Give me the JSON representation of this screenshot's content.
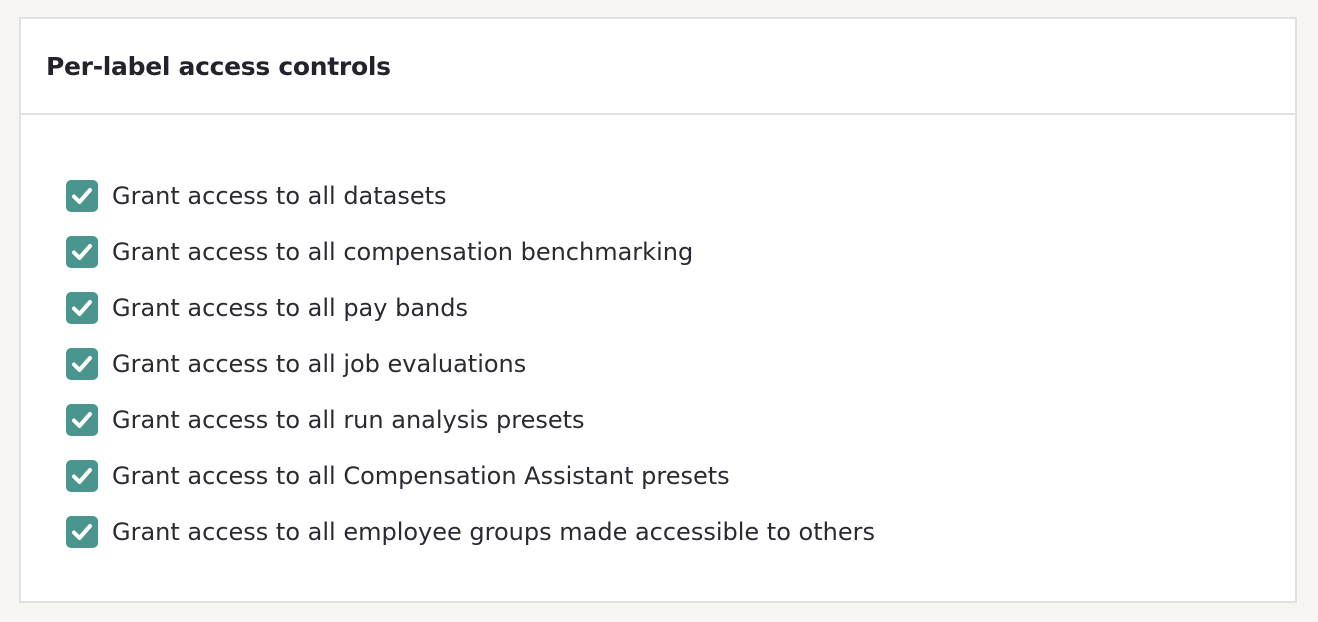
{
  "card": {
    "title": "Per-label access controls",
    "options": [
      {
        "label": "Grant access to all datasets",
        "checked": true
      },
      {
        "label": "Grant access to all compensation benchmarking",
        "checked": true
      },
      {
        "label": "Grant access to all pay bands",
        "checked": true
      },
      {
        "label": "Grant access to all job evaluations",
        "checked": true
      },
      {
        "label": "Grant access to all run analysis presets",
        "checked": true
      },
      {
        "label": "Grant access to all Compensation Assistant presets",
        "checked": true
      },
      {
        "label": "Grant access to all employee groups made accessible to others",
        "checked": true
      }
    ]
  },
  "colors": {
    "checkbox": "#4a968e"
  }
}
